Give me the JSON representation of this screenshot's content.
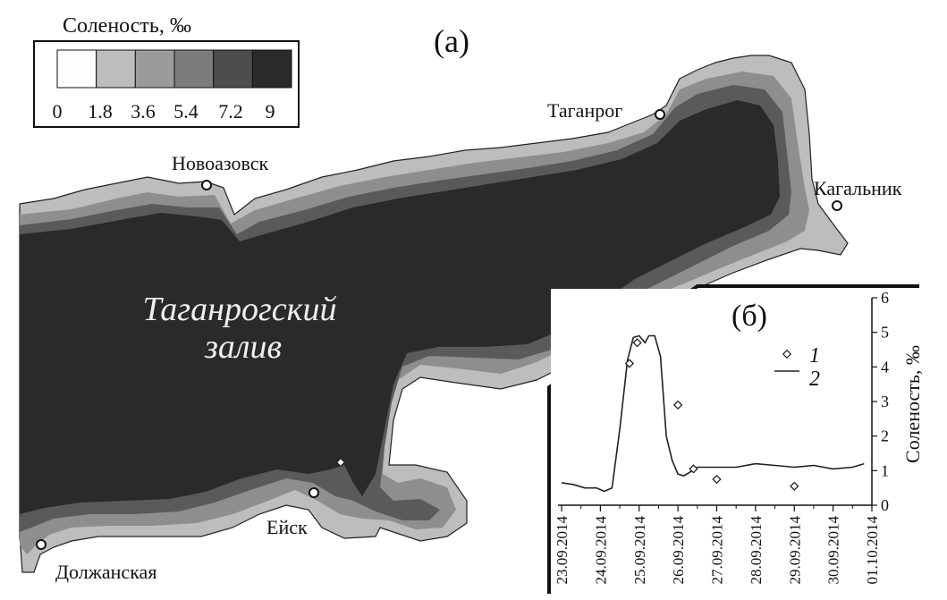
{
  "panel_labels": {
    "a": "(а)",
    "b": "(б)"
  },
  "legend": {
    "title": "Соленость, ‰",
    "ticks": [
      "0",
      "1.8",
      "3.6",
      "5.4",
      "7.2",
      "9"
    ],
    "colors": [
      "#fdfdfd",
      "#bdbdbd",
      "#9b9b9b",
      "#7c7c7c",
      "#4d4d4d",
      "#2a2a2a"
    ]
  },
  "map": {
    "water_name_line1": "Таганрогский",
    "water_name_line2": "залив",
    "places": [
      "Таганрог",
      "Новоазовск",
      "Кагальник",
      "Ейск",
      "Должанская"
    ]
  },
  "inset_legend": {
    "item1": "1",
    "item2": "2"
  },
  "chart_data": {
    "type": "line",
    "x_labels": [
      "23.09.2014",
      "24.09.2014",
      "25.09.2014",
      "26.09.2014",
      "27.09.2014",
      "28.09.2014",
      "29.09.2014",
      "30.09.2014",
      "01.10.2014"
    ],
    "ylabel": "Соленость, ‰",
    "ylim": [
      0,
      6
    ],
    "yticks": [
      "0",
      "1",
      "2",
      "3",
      "4",
      "5",
      "6"
    ],
    "series": [
      {
        "name": "1",
        "kind": "markers",
        "points": [
          [
            1.75,
            4.1
          ],
          [
            1.95,
            4.7
          ],
          [
            3.0,
            2.9
          ],
          [
            3.4,
            1.05
          ],
          [
            4.0,
            0.75
          ],
          [
            6.0,
            0.55
          ]
        ]
      },
      {
        "name": "2",
        "kind": "line",
        "points": [
          [
            0,
            0.65
          ],
          [
            0.3,
            0.6
          ],
          [
            0.6,
            0.5
          ],
          [
            0.9,
            0.5
          ],
          [
            1.1,
            0.4
          ],
          [
            1.3,
            0.5
          ],
          [
            1.5,
            2.2
          ],
          [
            1.7,
            4.2
          ],
          [
            1.85,
            4.85
          ],
          [
            2.0,
            4.9
          ],
          [
            2.15,
            4.7
          ],
          [
            2.25,
            4.9
          ],
          [
            2.4,
            4.9
          ],
          [
            2.55,
            4.3
          ],
          [
            2.7,
            2.0
          ],
          [
            2.85,
            1.3
          ],
          [
            3.0,
            0.9
          ],
          [
            3.15,
            0.85
          ],
          [
            3.3,
            0.95
          ],
          [
            3.5,
            1.1
          ],
          [
            4.0,
            1.1
          ],
          [
            4.5,
            1.1
          ],
          [
            5.0,
            1.2
          ],
          [
            5.5,
            1.15
          ],
          [
            6.0,
            1.1
          ],
          [
            6.5,
            1.15
          ],
          [
            7.0,
            1.05
          ],
          [
            7.5,
            1.1
          ],
          [
            7.8,
            1.2
          ]
        ]
      }
    ]
  }
}
